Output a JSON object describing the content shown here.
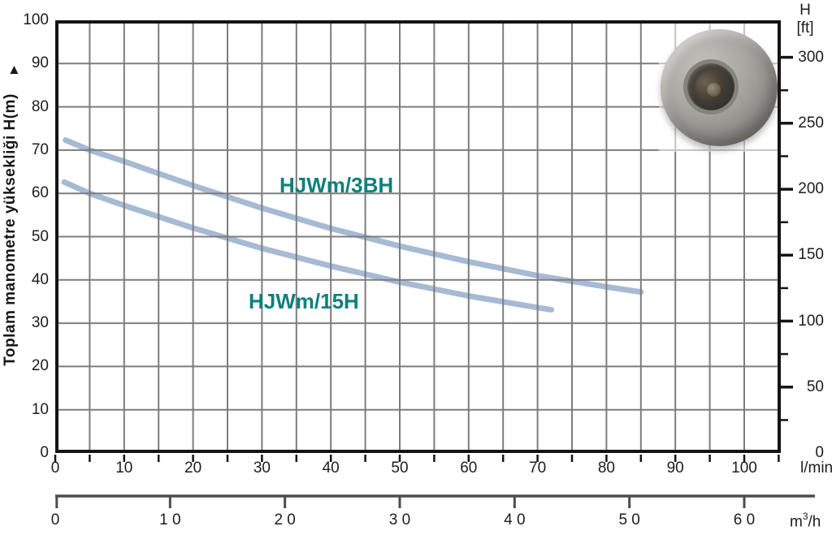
{
  "colors": {
    "curve": "#a6bad4",
    "curve_label": "#0e807c",
    "grid": "#7d7d7d",
    "frame": "#141414",
    "secondary_axis": "#4d4d4d",
    "text": "#1d1d1d"
  },
  "y_axis": {
    "title": "Toplam manometre yüksekliği H(m)",
    "tick_labels": [
      "100",
      "90",
      "80",
      "70",
      "60",
      "50",
      "40",
      "30",
      "20",
      "10",
      "0"
    ]
  },
  "y2_axis": {
    "title_line1": "H",
    "title_line2": "[ft]",
    "tick_labels": [
      "300",
      "250",
      "200",
      "150",
      "100",
      "50",
      "0"
    ]
  },
  "x_axis": {
    "tick_labels": [
      "0",
      "10",
      "20",
      "30",
      "40",
      "50",
      "60",
      "70",
      "80",
      "90",
      "100"
    ],
    "unit": "l/min"
  },
  "x2_axis": {
    "tick_labels": [
      "0",
      "1 0",
      "2 0",
      "3 0",
      "4 0",
      "5 0",
      "6 0"
    ],
    "unit_base": "m",
    "unit_sup": "3",
    "unit_rest": "/h"
  },
  "icons": {
    "y_axis_direction_arrow": "▲"
  },
  "chart_data": {
    "type": "line",
    "title": "",
    "xlabel": "l/min",
    "x2label": "m3/h",
    "ylabel": "Toplam manometre yüksekliği H(m)",
    "y2label": "H [ft]",
    "xlim": [
      0,
      105
    ],
    "ylim": [
      0,
      100
    ],
    "y2lim_ft": [
      0,
      330
    ],
    "grid": true,
    "x_grid_step_lmin": 5,
    "y_grid_step_m": 10,
    "x2_ticks_m3h": [
      0,
      1,
      2,
      3,
      4,
      5,
      6
    ],
    "y2_major_tick_step_ft": 50,
    "y2_minor_tick_step_ft": 25,
    "legend_position": "inline-labels",
    "series": [
      {
        "name": "HJWm/3BH",
        "color": "#a6bad4",
        "x_lmin": [
          1.5,
          5,
          10,
          20,
          30,
          40,
          50,
          60,
          70,
          80,
          85
        ],
        "h_m": [
          72.3,
          70,
          67.4,
          61.8,
          56.6,
          51.9,
          47.8,
          44.2,
          41.0,
          38.4,
          37.2
        ]
      },
      {
        "name": "HJWm/15H",
        "color": "#a6bad4",
        "x_lmin": [
          1.3,
          5,
          10,
          20,
          30,
          40,
          50,
          60,
          70,
          72
        ],
        "h_m": [
          62.6,
          60,
          57.2,
          52.0,
          47.3,
          43.2,
          39.5,
          36.3,
          33.6,
          33.1
        ]
      }
    ]
  }
}
